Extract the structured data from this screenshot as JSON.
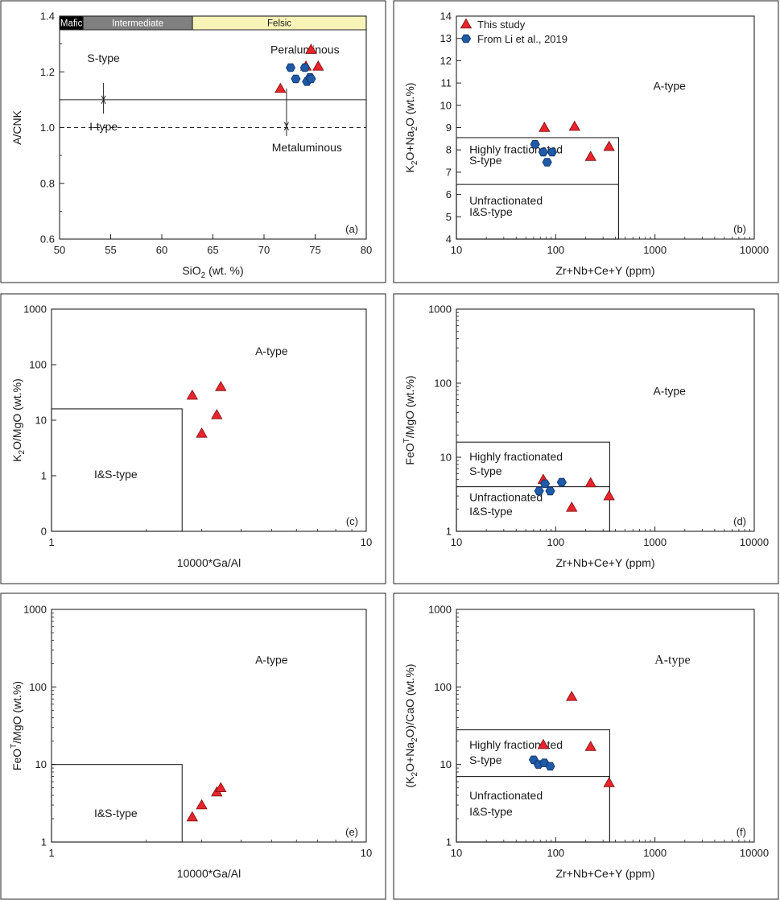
{
  "figure": {
    "legend": {
      "entries": [
        "This study",
        "From Li et al., 2019"
      ]
    },
    "colors": {
      "triangle": "#e8242c",
      "hexagon": "#1f5aa8",
      "mafic": "#000000",
      "intermediate": "#808080",
      "felsic": "#f8f4b8"
    }
  },
  "chart_data": [
    {
      "id": "a",
      "type": "scatter",
      "panel_label": "(a)",
      "xlabel": "SiO",
      "xlabel_sub": "2",
      "xlabel_rest": " (wt. %)",
      "ylabel": "A/CNK",
      "xscale": "linear",
      "yscale": "linear",
      "xlim": [
        50,
        80
      ],
      "ylim": [
        0.6,
        1.4
      ],
      "xticks": [
        50,
        55,
        60,
        65,
        70,
        75,
        80
      ],
      "xtick_labels": [
        "50",
        "55",
        "60",
        "65",
        "70",
        "75",
        "80"
      ],
      "yticks": [
        0.6,
        0.8,
        1.0,
        1.2,
        1.4
      ],
      "ytick_labels": [
        "0.6",
        "0.8",
        "1.0",
        "1.2",
        "1.4"
      ],
      "band": {
        "segments": [
          {
            "label": "Mafic",
            "from": 50,
            "to": 52.3,
            "fill": "#000000",
            "text_color": "#ffffff"
          },
          {
            "label": "Intermediate",
            "from": 52.3,
            "to": 63,
            "fill": "#808080",
            "text_color": "#ffffff"
          },
          {
            "label": "Felsic",
            "from": 63,
            "to": 80,
            "fill": "#f8f4b8",
            "text_color": "#1a1a1a"
          }
        ]
      },
      "hlines": [
        {
          "y": 1.1,
          "style": "solid"
        },
        {
          "y": 1.0,
          "style": "dashed"
        }
      ],
      "arrows": [
        {
          "x": 54.3,
          "from": 1.16,
          "to": 1.1
        },
        {
          "x": 54.3,
          "from": 1.05,
          "to": 1.1
        },
        {
          "x": 72.2,
          "from": 1.14,
          "to": 1.005
        },
        {
          "x": 72.2,
          "from": 0.97,
          "to": 1.005
        }
      ],
      "annotations": [
        {
          "text": "S-type",
          "x": 54.3,
          "y": 1.235
        },
        {
          "text": "I-type",
          "x": 54.3,
          "y": 0.99
        },
        {
          "text": "Peraluminous",
          "x": 74.0,
          "y": 1.265
        },
        {
          "text": "Metaluminous",
          "x": 74.2,
          "y": 0.915
        }
      ],
      "series": [
        {
          "name": "This study",
          "marker": "triangle",
          "x": [
            71.6,
            74.1,
            74.6,
            75.3
          ],
          "y": [
            1.14,
            1.22,
            1.28,
            1.22
          ]
        },
        {
          "name": "From Li et al., 2019",
          "marker": "hexagon",
          "x": [
            72.6,
            73.1,
            74.0,
            74.2,
            74.5,
            74.6
          ],
          "y": [
            1.215,
            1.175,
            1.215,
            1.165,
            1.18,
            1.175
          ]
        }
      ]
    },
    {
      "id": "b",
      "type": "scatter",
      "panel_label": "(b)",
      "xlabel": "Zr+Nb+Ce+Y (ppm)",
      "ylabel_parts": [
        "K",
        "2",
        "O+Na",
        "2",
        "O (wt.%)"
      ],
      "xscale": "log",
      "yscale": "linear",
      "xlim": [
        10,
        10000
      ],
      "ylim": [
        4,
        14
      ],
      "xticks": [
        10,
        100,
        1000,
        10000
      ],
      "xtick_labels": [
        "10",
        "100",
        "1000",
        "10000"
      ],
      "yticks": [
        4,
        5,
        6,
        7,
        8,
        9,
        10,
        11,
        12,
        13,
        14
      ],
      "ytick_labels": [
        "4",
        "5",
        "6",
        "7",
        "8",
        "9",
        "10",
        "11",
        "12",
        "13",
        "14"
      ],
      "boxes": [
        {
          "x0": 10,
          "x1": 430,
          "y0": 4,
          "y1": 8.55
        },
        {
          "x0": 10,
          "x1": 430,
          "y0": 4,
          "y1": 6.45
        }
      ],
      "annotations": [
        {
          "text": "A-type",
          "x": 1400,
          "y": 10.7
        },
        {
          "text": "Highly fractionated",
          "x": 13.5,
          "y": 7.85,
          "anchor": "start"
        },
        {
          "text": "S-type",
          "x": 13.5,
          "y": 7.35,
          "anchor": "start"
        },
        {
          "text": "Unfractionated",
          "x": 13.5,
          "y": 5.55,
          "anchor": "start"
        },
        {
          "text": "I&S-type",
          "x": 13.5,
          "y": 5.05,
          "anchor": "start"
        }
      ],
      "legend": true,
      "series": [
        {
          "name": "This study",
          "marker": "triangle",
          "x": [
            77,
            155,
            225,
            345
          ],
          "y": [
            9.0,
            9.05,
            7.7,
            8.15
          ]
        },
        {
          "name": "From Li et al., 2019",
          "marker": "hexagon",
          "x": [
            62,
            75,
            82,
            92
          ],
          "y": [
            8.25,
            7.9,
            7.45,
            7.9
          ]
        }
      ]
    },
    {
      "id": "c",
      "type": "scatter",
      "panel_label": "(c)",
      "xlabel": "10000*Ga/Al",
      "ylabel_parts": [
        "K",
        "2",
        "O/MgO  (wt.%)"
      ],
      "xscale": "log",
      "yscale": "log0",
      "xlim": [
        1,
        10
      ],
      "ylim": [
        0,
        1000
      ],
      "xticks": [
        1,
        10
      ],
      "xtick_labels": [
        "1",
        "10"
      ],
      "yticks": [
        0,
        1,
        10,
        100,
        1000
      ],
      "ytick_labels": [
        "0",
        "1",
        "10",
        "100",
        "1000"
      ],
      "boxes": [
        {
          "x0": 1,
          "x1": 2.6,
          "y0": 0,
          "y1": 16
        }
      ],
      "annotations": [
        {
          "text": "A-type",
          "x": 5.0,
          "y": 150
        },
        {
          "text": "I&S-type",
          "x": 1.6,
          "y": 0.9
        }
      ],
      "series": [
        {
          "name": "This study",
          "marker": "triangle",
          "x": [
            2.8,
            3.0,
            3.35,
            3.45
          ],
          "y": [
            28,
            5.8,
            12.5,
            40
          ]
        }
      ]
    },
    {
      "id": "d",
      "type": "scatter",
      "panel_label": "(d)",
      "xlabel": "Zr+Nb+Ce+Y (ppm)",
      "ylabel_parts": [
        "FeO",
        "T",
        "/MgO  (wt.%)"
      ],
      "xscale": "log",
      "yscale": "log",
      "xlim": [
        10,
        10000
      ],
      "ylim": [
        1,
        1000
      ],
      "xticks": [
        10,
        100,
        1000,
        10000
      ],
      "xtick_labels": [
        "10",
        "100",
        "1000",
        "10000"
      ],
      "yticks": [
        1,
        10,
        100,
        1000
      ],
      "ytick_labels": [
        "1",
        "10",
        "100",
        "1000"
      ],
      "boxes": [
        {
          "x0": 10,
          "x1": 350,
          "y0": 1,
          "y1": 16
        },
        {
          "x0": 10,
          "x1": 350,
          "y0": 1,
          "y1": 4
        }
      ],
      "annotations": [
        {
          "text": "A-type",
          "x": 1400,
          "y": 70
        },
        {
          "text": "Highly fractionated",
          "x": 13.5,
          "y": 9.0,
          "anchor": "start"
        },
        {
          "text": "S-type",
          "x": 13.5,
          "y": 5.8,
          "anchor": "start"
        },
        {
          "text": "Unfractionated",
          "x": 13.5,
          "y": 2.55,
          "anchor": "start"
        },
        {
          "text": "I&S-type",
          "x": 13.5,
          "y": 1.65,
          "anchor": "start"
        }
      ],
      "series": [
        {
          "name": "This study",
          "marker": "triangle",
          "x": [
            75,
            145,
            225,
            345
          ],
          "y": [
            5.0,
            2.1,
            4.5,
            3.0
          ]
        },
        {
          "name": "From Li et al., 2019",
          "marker": "hexagon",
          "x": [
            68,
            78,
            88,
            115
          ],
          "y": [
            3.5,
            4.4,
            3.5,
            4.6
          ]
        }
      ]
    },
    {
      "id": "e",
      "type": "scatter",
      "panel_label": "(e)",
      "xlabel": "10000*Ga/Al",
      "ylabel_parts": [
        "FeO",
        "T",
        "/MgO  (wt.%)"
      ],
      "xscale": "log",
      "yscale": "log",
      "xlim": [
        1,
        10
      ],
      "ylim": [
        1,
        1000
      ],
      "xticks": [
        1,
        10
      ],
      "xtick_labels": [
        "1",
        "10"
      ],
      "yticks": [
        1,
        10,
        100,
        1000
      ],
      "ytick_labels": [
        "1",
        "10",
        "100",
        "1000"
      ],
      "boxes": [
        {
          "x0": 1,
          "x1": 2.6,
          "y0": 1,
          "y1": 10
        }
      ],
      "annotations": [
        {
          "text": "A-type",
          "x": 5.0,
          "y": 200
        },
        {
          "text": "I&S-type",
          "x": 1.6,
          "y": 2.1
        }
      ],
      "series": [
        {
          "name": "This study",
          "marker": "triangle",
          "x": [
            2.8,
            3.0,
            3.35,
            3.45
          ],
          "y": [
            2.1,
            3.0,
            4.4,
            5.0
          ]
        }
      ]
    },
    {
      "id": "f",
      "type": "scatter",
      "panel_label": "(f)",
      "xlabel": "Zr+Nb+Ce+Y (ppm)",
      "ylabel_parts": [
        "(K",
        "2",
        "O+Na",
        "2",
        "O)/CaO (wt.%)"
      ],
      "xscale": "log",
      "yscale": "log",
      "xlim": [
        10,
        10000
      ],
      "ylim": [
        1,
        1000
      ],
      "xticks": [
        10,
        100,
        1000,
        10000
      ],
      "xtick_labels": [
        "10",
        "100",
        "1000",
        "10000"
      ],
      "yticks": [
        1,
        10,
        100,
        1000
      ],
      "ytick_labels": [
        "1",
        "10",
        "100",
        "1000"
      ],
      "boxes": [
        {
          "x0": 10,
          "x1": 350,
          "y0": 1,
          "y1": 28
        },
        {
          "x0": 10,
          "x1": 350,
          "y0": 1,
          "y1": 7
        }
      ],
      "annotations": [
        {
          "text": "A-type",
          "x": 1500,
          "y": 200,
          "serif": true
        },
        {
          "text": "Highly fractionated",
          "x": 13.5,
          "y": 16,
          "anchor": "start"
        },
        {
          "text": "S-type",
          "x": 13.5,
          "y": 10.2,
          "anchor": "start"
        },
        {
          "text": "Unfractionated",
          "x": 13.5,
          "y": 3.55,
          "anchor": "start"
        },
        {
          "text": "I&S-type",
          "x": 13.5,
          "y": 2.2,
          "anchor": "start"
        }
      ],
      "series": [
        {
          "name": "This study",
          "marker": "triangle",
          "x": [
            75,
            145,
            225,
            345
          ],
          "y": [
            18,
            75,
            17,
            5.8
          ]
        },
        {
          "name": "From Li et al., 2019",
          "marker": "hexagon",
          "x": [
            60,
            67,
            77,
            88
          ],
          "y": [
            11.5,
            10,
            10.5,
            9.5
          ]
        }
      ]
    }
  ]
}
